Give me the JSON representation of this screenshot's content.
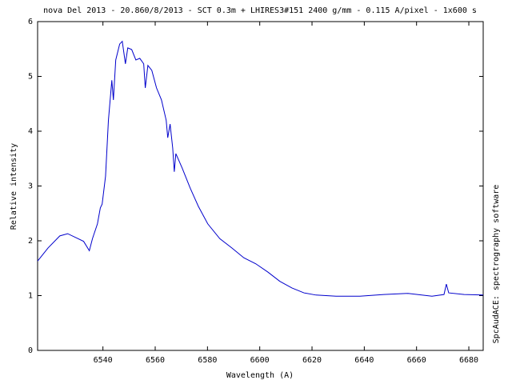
{
  "chart_data": {
    "type": "line",
    "title": "nova Del 2013 - 20.860/8/2013 - SCT 0.3m + LHIRES3#151 2400 g/mm - 0.115 A/pixel - 1x600 s",
    "x_label": "Wavelength (A)",
    "y_label": "Relative intensity",
    "annotation": "SpcAudACE: spectrography software",
    "color": "#0000cc",
    "x": [
      6515,
      6519,
      6523.5,
      6526.5,
      6529.6,
      6532.6,
      6534.8,
      6536,
      6537.9,
      6539,
      6539.7,
      6541,
      6542.1,
      6543.4,
      6544,
      6544.9,
      6546.4,
      6547.4,
      6548.6,
      6549.5,
      6551,
      6552.6,
      6554.1,
      6555.6,
      6556.2,
      6557.2,
      6558.7,
      6560.5,
      6562.4,
      6564.2,
      6564.8,
      6565.7,
      6566.7,
      6567.3,
      6567.9,
      6570.3,
      6573.4,
      6576.5,
      6580.1,
      6584.7,
      6589.3,
      6593.9,
      6598.5,
      6603.1,
      6607.7,
      6612.3,
      6616.9,
      6621.5,
      6629.2,
      6638.3,
      6647.5,
      6656.7,
      6665.9,
      6670.5,
      6671.4,
      6672.3,
      6678.2,
      6685.5
    ],
    "values": [
      1.63,
      1.87,
      2.09,
      2.13,
      2.06,
      1.99,
      1.82,
      2.04,
      2.31,
      2.6,
      2.67,
      3.18,
      4.2,
      4.93,
      4.57,
      5.3,
      5.59,
      5.64,
      5.23,
      5.52,
      5.49,
      5.3,
      5.33,
      5.23,
      4.79,
      5.2,
      5.11,
      4.79,
      4.57,
      4.2,
      3.88,
      4.13,
      3.69,
      3.26,
      3.59,
      3.33,
      2.96,
      2.63,
      2.31,
      2.04,
      1.87,
      1.69,
      1.58,
      1.43,
      1.26,
      1.14,
      1.05,
      1.01,
      0.99,
      0.99,
      1.02,
      1.04,
      0.99,
      1.02,
      1.21,
      1.05,
      1.02,
      1.01
    ],
    "xlim": [
      6515,
      6685.5
    ],
    "ylim": [
      0,
      6
    ],
    "xticks": [
      6540,
      6560,
      6580,
      6600,
      6620,
      6640,
      6660,
      6680
    ],
    "yticks": [
      0,
      1,
      2,
      3,
      4,
      5,
      6
    ]
  }
}
